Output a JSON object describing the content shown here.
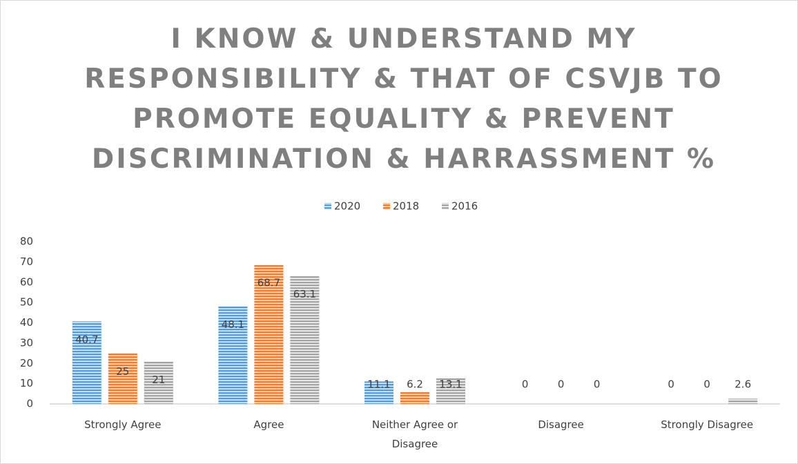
{
  "chart_data": {
    "type": "bar",
    "title": "I KNOW & UNDERSTAND MY RESPONSIBILITY & THAT OF CSVJB TO PROMOTE EQUALITY & PREVENT DISCRIMINATION & HARRASSMENT %",
    "categories": [
      "Strongly Agree",
      "Agree",
      "Neither Agree or Disagree",
      "Disagree",
      "Strongly Disagree"
    ],
    "series": [
      {
        "name": "2020",
        "color": "#5b9bd5",
        "values": [
          40.7,
          48.1,
          11.1,
          0,
          0
        ]
      },
      {
        "name": "2018",
        "color": "#ed7d31",
        "values": [
          25,
          68.7,
          6.2,
          0,
          0
        ]
      },
      {
        "name": "2016",
        "color": "#a5a5a5",
        "values": [
          21,
          63.1,
          13.1,
          0,
          2.6
        ]
      }
    ],
    "ylim": [
      0,
      80
    ],
    "yticks": [
      0,
      10,
      20,
      30,
      40,
      50,
      60,
      70,
      80
    ],
    "legend": "top"
  }
}
